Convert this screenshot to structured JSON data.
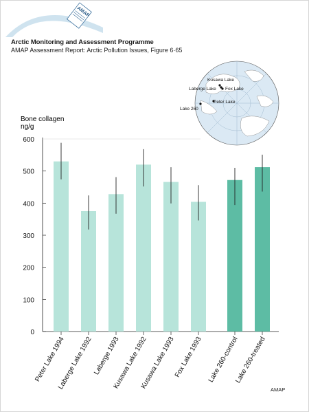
{
  "logo": {
    "text": "AMAP"
  },
  "header": {
    "title": "Arctic Monitoring and Assessment Programme",
    "subtitle": "AMAP Assessment Report: Arctic Pollution Issues, Figure 6·65"
  },
  "map": {
    "places": [
      {
        "name": "Kusawa  Lake"
      },
      {
        "name": "Laberge  Lake"
      },
      {
        "name": "Fox  Lake"
      },
      {
        "name": "Peter  Lake"
      },
      {
        "name": "Lake 260"
      }
    ]
  },
  "chart_data": {
    "type": "bar",
    "ylabel": "Bone collagen",
    "yunit": "ng/g",
    "ylim": [
      0,
      600
    ],
    "yticks": [
      0,
      100,
      200,
      300,
      400,
      500,
      600
    ],
    "categories": [
      "Peter Lake 1994",
      "Laberge Lake 1992",
      "Laberge 1993",
      "Kusawa Lake 1992",
      "Kusawa Lake 1993",
      "Fox Lake 1993",
      "Lake 260-control",
      "Lake 260-treated"
    ],
    "values": [
      530,
      375,
      428,
      520,
      466,
      404,
      472,
      512
    ],
    "error_low": [
      474,
      318,
      367,
      452,
      399,
      346,
      394,
      436
    ],
    "error_high": [
      588,
      424,
      481,
      568,
      512,
      456,
      510,
      551
    ],
    "colors": [
      "#b7e4da",
      "#b7e4da",
      "#b7e4da",
      "#b7e4da",
      "#b7e4da",
      "#b7e4da",
      "#5dbca4",
      "#5dbca4"
    ],
    "grid": false
  },
  "footer": {
    "credit": "AMAP"
  }
}
